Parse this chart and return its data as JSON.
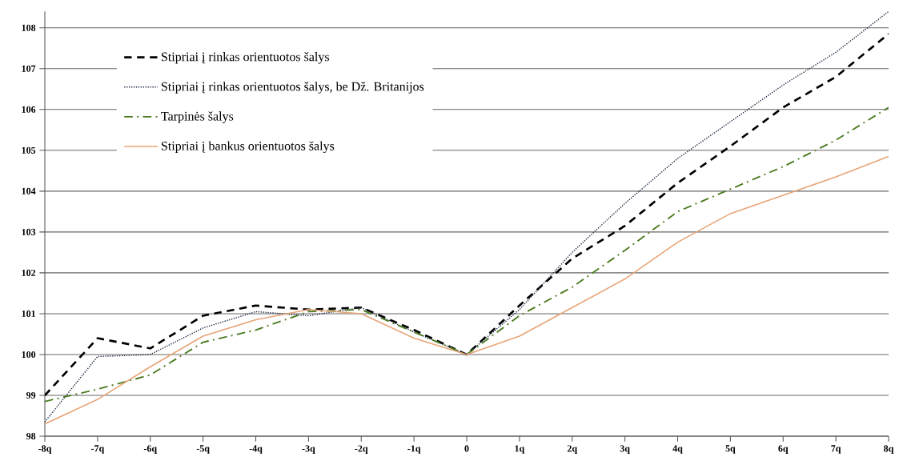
{
  "chart_data": {
    "type": "line",
    "categories": [
      "-8q",
      "-7q",
      "-6q",
      "-5q",
      "-4q",
      "-3q",
      "-2q",
      "-1q",
      "0",
      "1q",
      "2q",
      "3q",
      "4q",
      "5q",
      "6q",
      "7q",
      "8q"
    ],
    "series": [
      {
        "name": "Stipriai į rinkas orientuotos šalys",
        "color": "#000000",
        "line_style": "dashed",
        "values": [
          99.0,
          100.4,
          100.15,
          100.95,
          101.2,
          101.1,
          101.15,
          100.6,
          100.0,
          101.2,
          102.35,
          103.15,
          104.2,
          105.1,
          106.05,
          106.8,
          107.85
        ]
      },
      {
        "name": "Stipriai į rinkas orientuotos šalys, be Dž. Britanijos",
        "color": "#1f2a44",
        "line_style": "dotted",
        "values": [
          98.35,
          99.95,
          100.0,
          100.65,
          101.05,
          100.95,
          101.15,
          100.55,
          100.0,
          101.1,
          102.5,
          103.7,
          104.8,
          105.7,
          106.6,
          107.4,
          108.4
        ]
      },
      {
        "name": "Tarpinės šalys",
        "color": "#4a7a1e",
        "line_style": "dashdot",
        "values": [
          98.85,
          99.15,
          99.5,
          100.3,
          100.6,
          101.05,
          101.1,
          100.55,
          100.0,
          100.95,
          101.65,
          102.55,
          103.5,
          104.05,
          104.6,
          105.25,
          106.05
        ]
      },
      {
        "name": "Stipriai į bankus orientuotos šalys",
        "color": "#e8a477",
        "line_style": "solid",
        "values": [
          98.3,
          98.9,
          99.7,
          100.45,
          100.85,
          101.1,
          101.0,
          100.4,
          100.0,
          100.45,
          101.15,
          101.85,
          102.75,
          103.45,
          103.9,
          104.35,
          104.85
        ]
      }
    ],
    "ylim": [
      98,
      108.4
    ],
    "yticks": [
      98,
      99,
      100,
      101,
      102,
      103,
      104,
      105,
      106,
      107,
      108
    ],
    "grid": "y",
    "legend": "top left",
    "marker": "none"
  }
}
